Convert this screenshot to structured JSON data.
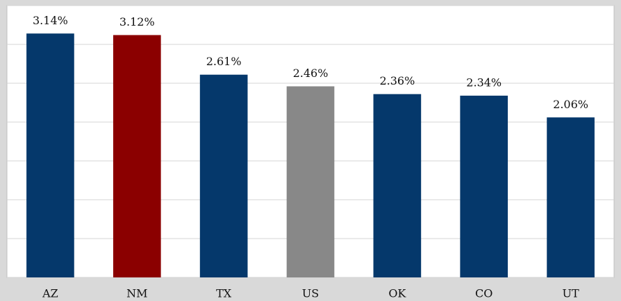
{
  "chart_data": {
    "type": "bar",
    "categories": [
      "AZ",
      "NM",
      "TX",
      "US",
      "OK",
      "CO",
      "UT"
    ],
    "values": [
      3.14,
      3.12,
      2.61,
      2.46,
      2.36,
      2.34,
      2.06
    ],
    "value_labels": [
      "3.14%",
      "3.12%",
      "2.61%",
      "2.46%",
      "2.36%",
      "2.34%",
      "2.06%"
    ],
    "colors": [
      "#05386b",
      "#8b0000",
      "#05386b",
      "#888888",
      "#05386b",
      "#05386b",
      "#05386b"
    ],
    "ylim": [
      0,
      3.5
    ],
    "yticks": [
      0,
      0.5,
      1,
      1.5,
      2,
      2.5,
      3,
      3.5
    ],
    "grid": true
  }
}
